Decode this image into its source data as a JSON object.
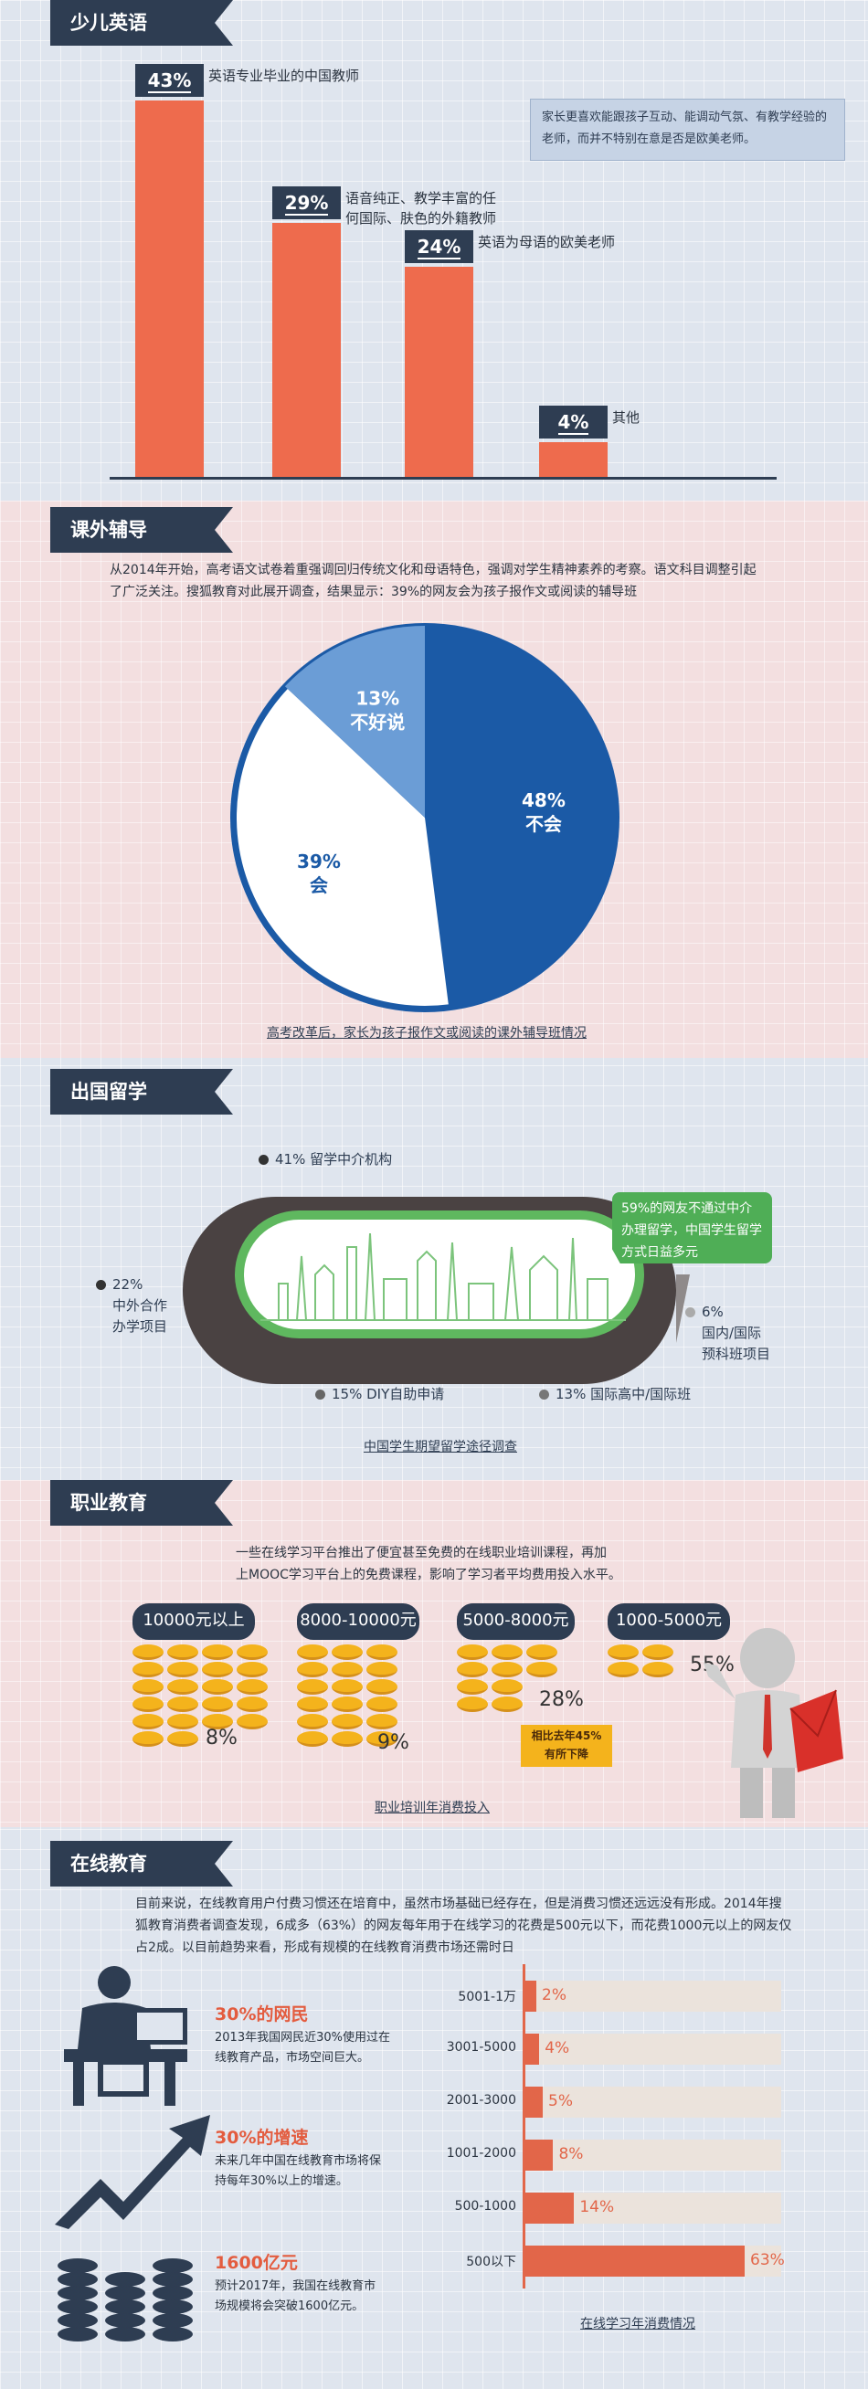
{
  "sections": {
    "kids_english": "少儿英语",
    "tutoring": "课外辅导",
    "study_abroad": "出国留学",
    "vocational": "职业教育",
    "online": "在线教育"
  },
  "kids_english": {
    "note": "家长更喜欢能跟孩子互动、能调动气氛、有教学经验的老师，而并不特别在意是否是欧美老师。",
    "chart_data": {
      "type": "bar",
      "categories": [
        "英语专业毕业的中国教师",
        "语音纯正、教学丰富的任何国际、肤色的外籍教师",
        "英语为母语的欧美老师",
        "其他"
      ],
      "values": [
        43,
        29,
        24,
        4
      ],
      "labels": [
        "43%",
        "29%",
        "24%",
        "4%"
      ],
      "label_lines": [
        [
          "英语专业毕业的中国教师"
        ],
        [
          "语音纯正、教学丰富的任",
          "何国际、肤色的外籍教师"
        ],
        [
          "英语为母语的欧美老师"
        ],
        [
          "其他"
        ]
      ],
      "ylim": [
        0,
        50
      ],
      "colors": {
        "bar": "#ee6b4d",
        "tag": "#2e3d52"
      }
    }
  },
  "tutoring": {
    "intro": "从2014年开始，高考语文试卷着重强调回归传统文化和母语特色，强调对学生精神素养的考察。语文科目调整引起了广泛关注。搜狐教育对此展开调查，结果显示：39%的网友会为孩子报作文或阅读的辅导班",
    "caption": "高考改革后，家长为孩子报作文或阅读的课外辅导班情况",
    "chart_data": {
      "type": "pie",
      "slices": [
        {
          "label": "不会",
          "value": 48,
          "pct": "48%",
          "color": "#1b5aa6"
        },
        {
          "label": "会",
          "value": 39,
          "pct": "39%",
          "color": "#ffffff"
        },
        {
          "label": "不好说",
          "value": 13,
          "pct": "13%",
          "color": "#6b9dd6"
        }
      ]
    }
  },
  "abroad": {
    "callout": "59%的网友不通过中介办理留学，中国学生留学方式日益多元",
    "caption": "中国学生期望留学途径调查",
    "chart_data": {
      "type": "table",
      "items": [
        {
          "label": "留学中介机构",
          "pct": "41%",
          "value": 41
        },
        {
          "label": "中外合作办学项目",
          "pct": "22%",
          "value": 22
        },
        {
          "label": "DIY自助申请",
          "pct": "15%",
          "value": 15
        },
        {
          "label": "国际高中/国际班",
          "pct": "13%",
          "value": 13
        },
        {
          "label": "国内/国际预科班项目",
          "pct": "6%",
          "value": 6
        }
      ]
    },
    "labels": {
      "agency": "41%  留学中介机构",
      "coop_pct": "22%",
      "coop_l1": "中外合作",
      "coop_l2": "办学项目",
      "diy": "15%  DIY自助申请",
      "intl": "13%  国际高中/国际班",
      "prep_pct": "6%",
      "prep_l1": "国内/国际",
      "prep_l2": "预科班项目"
    }
  },
  "vocational": {
    "intro_l1": "一些在线学习平台推出了便宜甚至免费的在线职业培训课程，再加",
    "intro_l2": "上MOOC学习平台上的免费课程，影响了学习者平均费用投入水平。",
    "caption": "职业培训年消费投入",
    "badge_l1": "相比去年45%",
    "badge_l2": "有所下降",
    "chart_data": {
      "type": "bar",
      "categories": [
        "10000元以上",
        "8000-10000元",
        "5000-8000元",
        "1000-5000元"
      ],
      "values": [
        8,
        9,
        28,
        55
      ],
      "labels": [
        "8%",
        "9%",
        "28%",
        "55%"
      ]
    }
  },
  "online": {
    "intro": "目前来说，在线教育用户付费习惯还在培育中，虽然市场基础已经存在，但是消费习惯还远远没有形成。2014年搜狐教育消费者调查发现，6成多（63%）的网友每年用于在线学习的花费是500元以下，而花费1000元以上的网友仅占2成。以目前趋势来看，形成有规模的在线教育消费市场还需时日",
    "stats": [
      {
        "head": "30%的网民",
        "body": "2013年我国网民近30%使用过在线教育产品，市场空间巨大。"
      },
      {
        "head": "30%的增速",
        "body": "未来几年中国在线教育市场将保持每年30%以上的增速。"
      },
      {
        "head": "1600亿元",
        "body": "预计2017年，我国在线教育市场规模将会突破1600亿元。"
      }
    ],
    "caption": "在线学习年消费情况",
    "chart_data": {
      "type": "bar",
      "orientation": "horizontal",
      "categories": [
        "5001-1万",
        "3001-5000",
        "2001-3000",
        "1001-2000",
        "500-1000",
        "500以下"
      ],
      "values": [
        2,
        4,
        5,
        8,
        14,
        63
      ],
      "labels": [
        "2%",
        "4%",
        "5%",
        "8%",
        "14%",
        "63%"
      ],
      "xlim": [
        0,
        63
      ]
    }
  }
}
